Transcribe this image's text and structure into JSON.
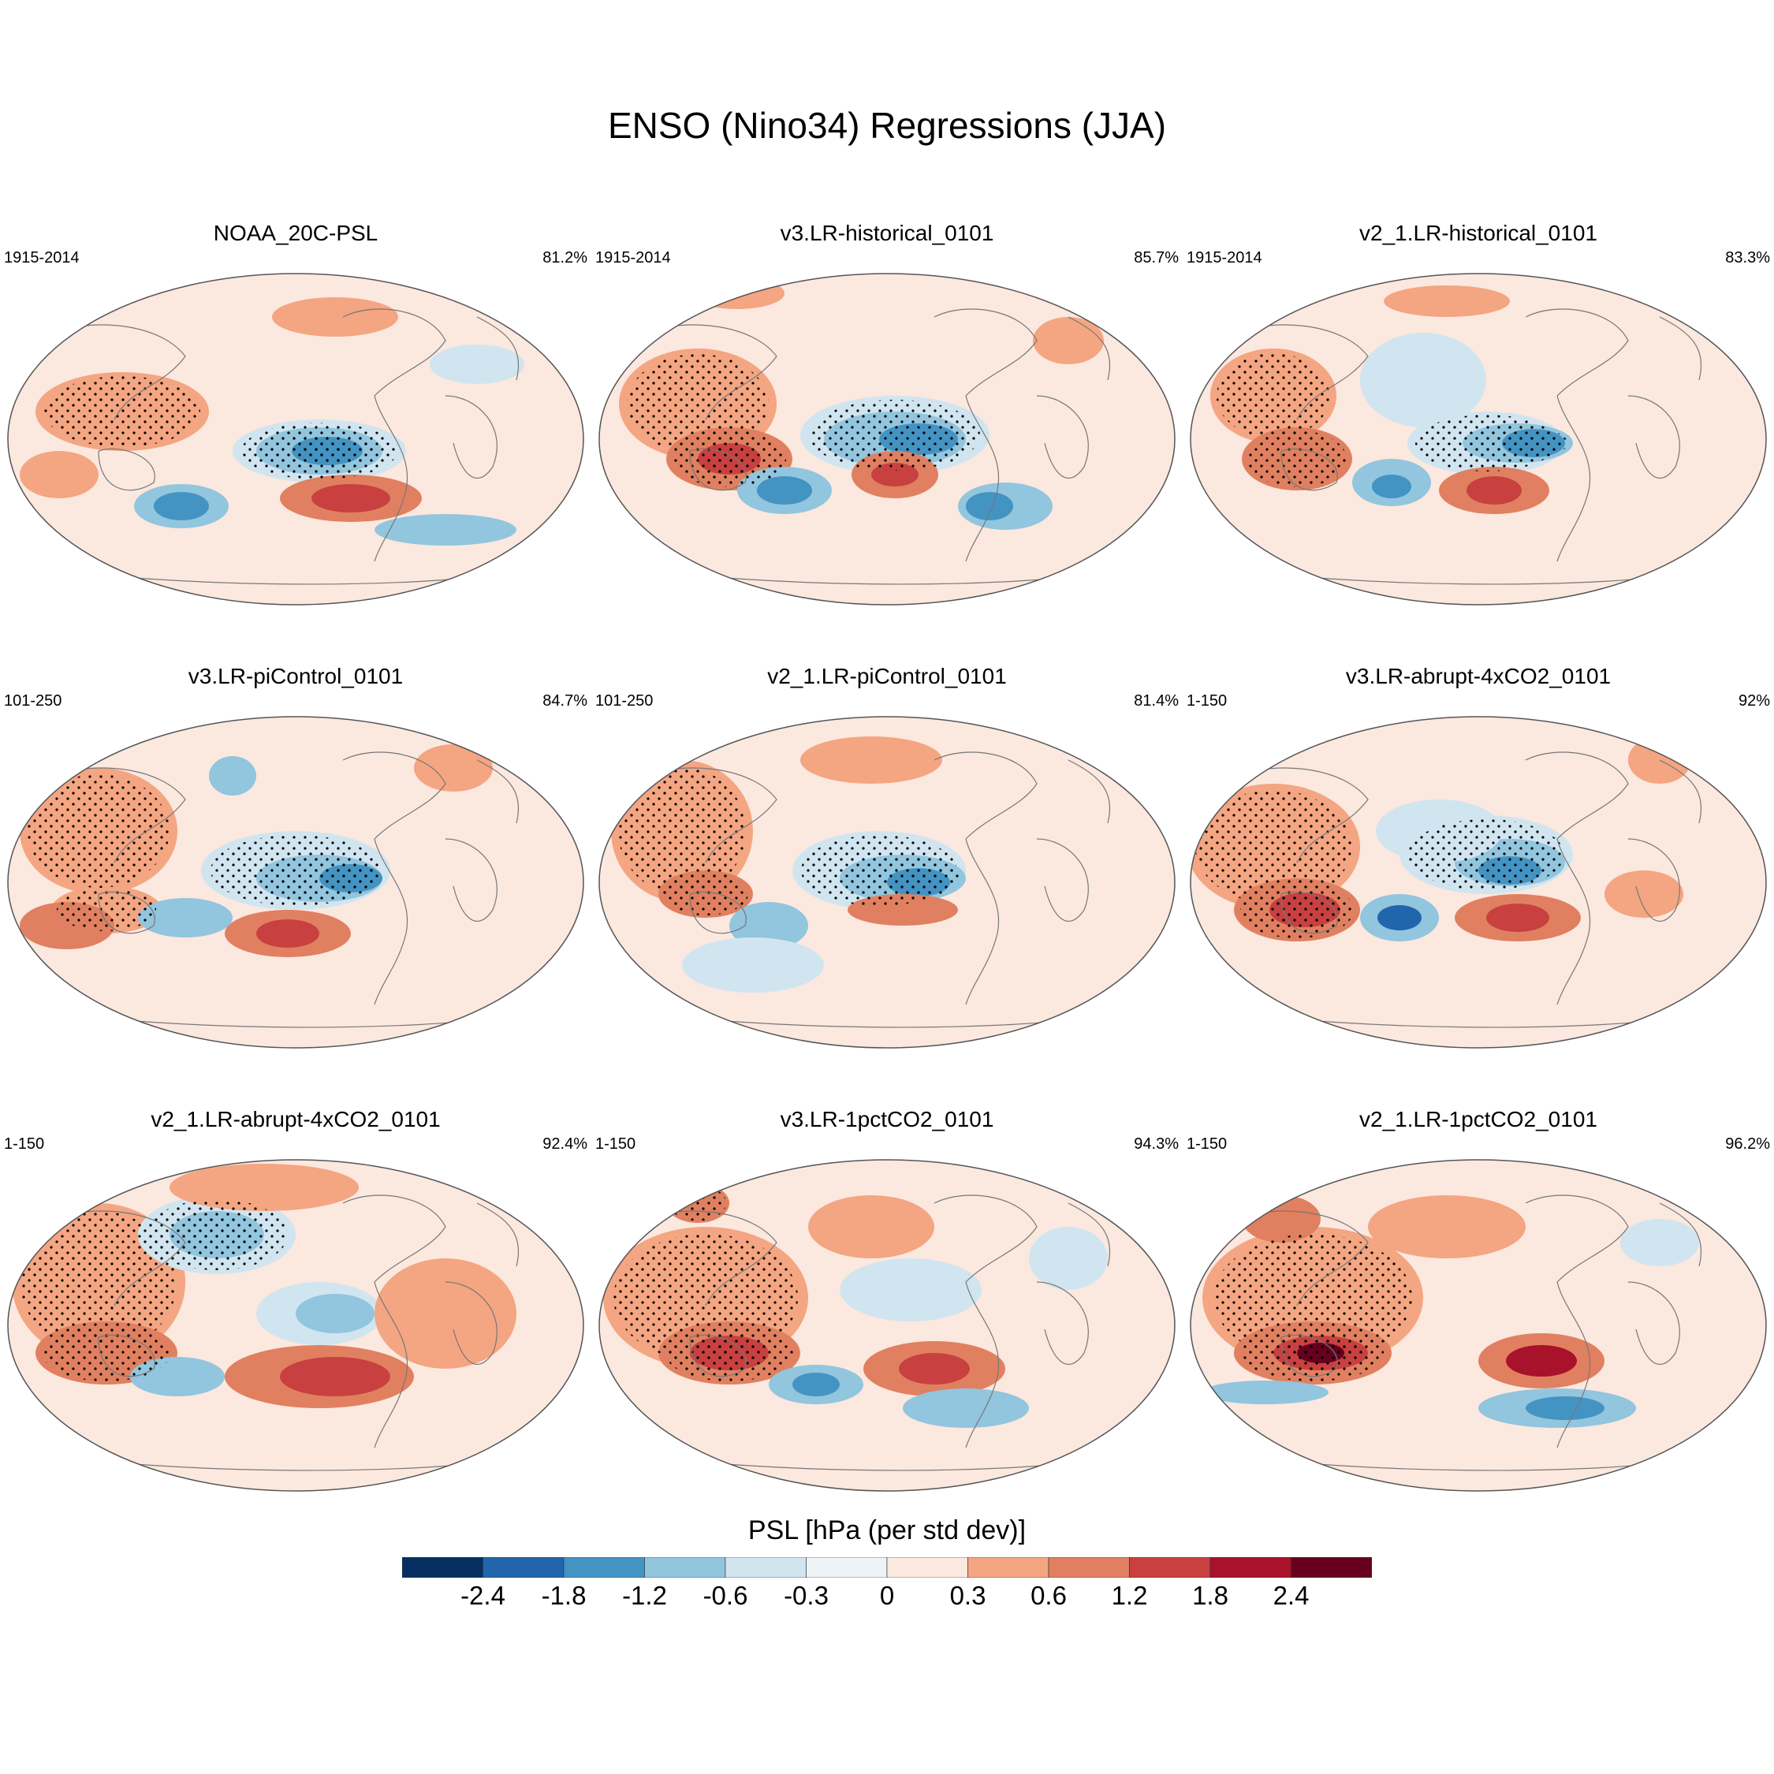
{
  "title": "ENSO (Nino34) Regressions (JJA)",
  "panels": [
    {
      "title": "NOAA_20C-PSL",
      "period": "1915-2014",
      "pct": "81.2%"
    },
    {
      "title": "v3.LR-historical_0101",
      "period": "1915-2014",
      "pct": "85.7%"
    },
    {
      "title": "v2_1.LR-historical_0101",
      "period": "1915-2014",
      "pct": "83.3%"
    },
    {
      "title": "v3.LR-piControl_0101",
      "period": "101-250",
      "pct": "84.7%"
    },
    {
      "title": "v2_1.LR-piControl_0101",
      "period": "101-250",
      "pct": "81.4%"
    },
    {
      "title": "v3.LR-abrupt-4xCO2_0101",
      "period": "1-150",
      "pct": "92%"
    },
    {
      "title": "v2_1.LR-abrupt-4xCO2_0101",
      "period": "1-150",
      "pct": "92.4%"
    },
    {
      "title": "v3.LR-1pctCO2_0101",
      "period": "1-150",
      "pct": "94.3%"
    },
    {
      "title": "v2_1.LR-1pctCO2_0101",
      "period": "1-150",
      "pct": "96.2%"
    }
  ],
  "colorbar": {
    "title": "PSL [hPa (per std dev)]",
    "labels": [
      "-2.4",
      "-1.8",
      "-1.2",
      "-0.6",
      "-0.3",
      "0",
      "0.3",
      "0.6",
      "1.2",
      "1.8",
      "2.4"
    ],
    "colors": [
      "#053061",
      "#2166ac",
      "#4393c3",
      "#92c5de",
      "#d1e5f0",
      "#eef3f7",
      "#fbe8df",
      "#f4a582",
      "#e08060",
      "#c84040",
      "#a8122a",
      "#67001f"
    ]
  }
}
